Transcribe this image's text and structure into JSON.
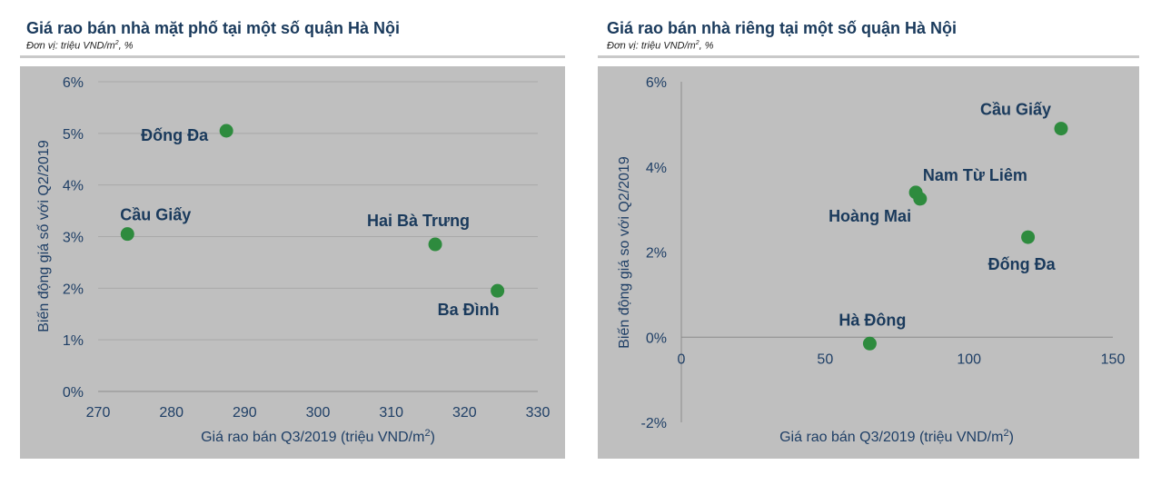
{
  "left": {
    "title": "Giá rao bán nhà mặt phố tại một số quận Hà Nội",
    "subtitle": "Đơn vị: triệu VND/m², %"
  },
  "right": {
    "title": "Giá rao bán nhà riêng tại một số quận Hà Nội",
    "subtitle": "Đơn vị: triệu VND/m², %"
  },
  "colors": {
    "point": "#2e8b3e",
    "axis_text": "#1f3f66",
    "plot_bg": "#bfbfbf",
    "grid": "#a9a9a9"
  },
  "chart_data": [
    {
      "type": "scatter",
      "title": "Giá rao bán nhà mặt phố tại một số quận Hà Nội",
      "xlabel": "Giá rao bán Q3/2019 (triệu VND/m²)",
      "ylabel": "Biến động giá số với Q2/2019",
      "xlim": [
        270,
        330
      ],
      "ylim": [
        0,
        6
      ],
      "xticks": [
        "270",
        "280",
        "290",
        "300",
        "310",
        "320",
        "330"
      ],
      "yticks": [
        "0%",
        "1%",
        "2%",
        "3%",
        "4%",
        "5%",
        "6%"
      ],
      "grid": "horizontal",
      "points": [
        {
          "label": "Đống Đa",
          "x": 287.5,
          "y": 5.05
        },
        {
          "label": "Cầu Giấy",
          "x": 274,
          "y": 3.05
        },
        {
          "label": "Hai Bà Trưng",
          "x": 316,
          "y": 2.85
        },
        {
          "label": "Ba Đình",
          "x": 324.5,
          "y": 1.95
        }
      ]
    },
    {
      "type": "scatter",
      "title": "Giá rao bán nhà riêng tại một số quận Hà Nội",
      "xlabel": "Giá rao bán Q3/2019 (triệu VND/m²)",
      "ylabel": "Biến động giá so với Q2/2019",
      "xlim": [
        0,
        150
      ],
      "ylim": [
        -2,
        6
      ],
      "xticks": [
        "0",
        "50",
        "100",
        "150"
      ],
      "yticks": [
        "-2%",
        "0%",
        "2%",
        "4%",
        "6%"
      ],
      "grid": "none",
      "points": [
        {
          "label": "Cầu Giấy",
          "x": 132,
          "y": 4.9
        },
        {
          "label": "Nam Từ Liêm",
          "x": 83,
          "y": 3.25
        },
        {
          "label": "Hoàng Mai",
          "x": 81.5,
          "y": 3.4
        },
        {
          "label": "Đống Đa",
          "x": 120.5,
          "y": 2.35
        },
        {
          "label": "Hà Đông",
          "x": 65.5,
          "y": -0.15
        }
      ]
    }
  ]
}
